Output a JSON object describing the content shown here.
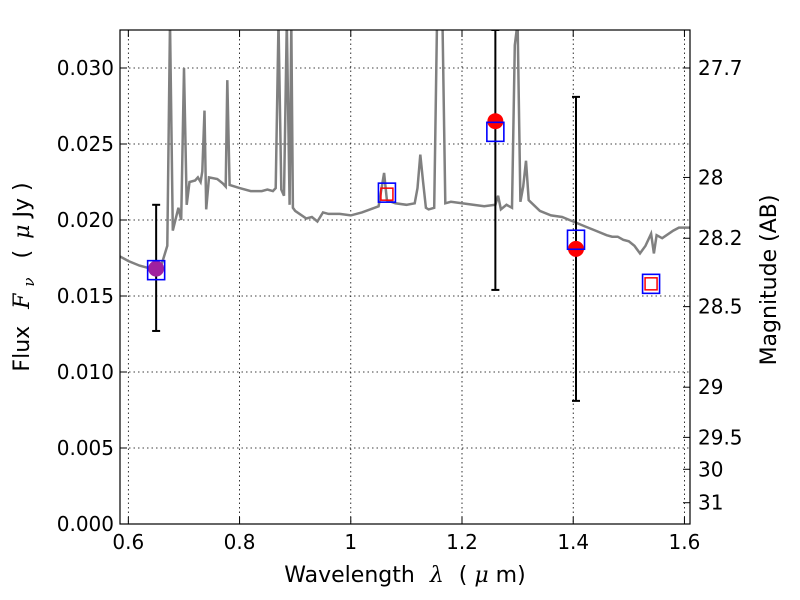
{
  "chart_data": {
    "type": "scatter",
    "xlabel_text": "Wavelength",
    "xlabel_symbol": "λ",
    "xlabel_unit_open": "(",
    "xlabel_unit_mu": "μ",
    "xlabel_unit_rest": "m)",
    "ylabel_text": "Flux",
    "ylabel_symbol": "F",
    "ylabel_sub": "ν",
    "ylabel_unit_open": "(",
    "ylabel_unit_mu": "μ",
    "ylabel_unit_rest": "Jy )",
    "y2label": "Magnitude (AB)",
    "xlim": [
      0.585,
      1.61
    ],
    "ylim": [
      0.0,
      0.0325
    ],
    "grid": true,
    "x_ticks": [
      0.6,
      0.8,
      1.0,
      1.2,
      1.4,
      1.6
    ],
    "x_tick_labels": [
      "0.6",
      "0.8",
      "1",
      "1.2",
      "1.4",
      "1.6"
    ],
    "y_ticks": [
      0.0,
      0.005,
      0.01,
      0.015,
      0.02,
      0.025,
      0.03
    ],
    "y_tick_labels": [
      "0.000",
      "0.005",
      "0.010",
      "0.015",
      "0.020",
      "0.025",
      "0.030"
    ],
    "y2_ticks": [
      {
        "label": "27.7",
        "flux": 0.03
      },
      {
        "label": "28",
        "flux": 0.0228
      },
      {
        "label": "28.2",
        "flux": 0.0188
      },
      {
        "label": "28.5",
        "flux": 0.0143
      },
      {
        "label": "29",
        "flux": 0.009
      },
      {
        "label": "29.5",
        "flux": 0.0057
      },
      {
        "label": "30",
        "flux": 0.0036
      },
      {
        "label": "31",
        "flux": 0.0014
      }
    ],
    "series": [
      {
        "kind": "template-spectrum",
        "color": "#808080",
        "points": [
          [
            0.585,
            0.0176
          ],
          [
            0.6,
            0.0173
          ],
          [
            0.62,
            0.017
          ],
          [
            0.64,
            0.0168
          ],
          [
            0.66,
            0.0171
          ],
          [
            0.67,
            0.0183
          ],
          [
            0.675,
            0.033
          ],
          [
            0.68,
            0.0193
          ],
          [
            0.69,
            0.0208
          ],
          [
            0.695,
            0.02
          ],
          [
            0.7,
            0.03
          ],
          [
            0.705,
            0.021
          ],
          [
            0.71,
            0.0225
          ],
          [
            0.72,
            0.0226
          ],
          [
            0.725,
            0.0228
          ],
          [
            0.73,
            0.0225
          ],
          [
            0.733,
            0.0232
          ],
          [
            0.737,
            0.0272
          ],
          [
            0.74,
            0.0207
          ],
          [
            0.745,
            0.0228
          ],
          [
            0.76,
            0.0227
          ],
          [
            0.77,
            0.0224
          ],
          [
            0.775,
            0.0222
          ],
          [
            0.778,
            0.0292
          ],
          [
            0.782,
            0.0223
          ],
          [
            0.8,
            0.0221
          ],
          [
            0.82,
            0.0219
          ],
          [
            0.84,
            0.0219
          ],
          [
            0.85,
            0.022
          ],
          [
            0.86,
            0.0219
          ],
          [
            0.865,
            0.0221
          ],
          [
            0.87,
            0.033
          ],
          [
            0.875,
            0.022
          ],
          [
            0.88,
            0.0216
          ],
          [
            0.885,
            0.033
          ],
          [
            0.89,
            0.021
          ],
          [
            0.893,
            0.033
          ],
          [
            0.896,
            0.0208
          ],
          [
            0.9,
            0.0206
          ],
          [
            0.92,
            0.0201
          ],
          [
            0.93,
            0.0202
          ],
          [
            0.94,
            0.0199
          ],
          [
            0.95,
            0.0205
          ],
          [
            0.96,
            0.0204
          ],
          [
            0.98,
            0.0204
          ],
          [
            1.0,
            0.0203
          ],
          [
            1.02,
            0.0205
          ],
          [
            1.05,
            0.0209
          ],
          [
            1.06,
            0.0231
          ],
          [
            1.065,
            0.0213
          ],
          [
            1.08,
            0.0211
          ],
          [
            1.1,
            0.021
          ],
          [
            1.115,
            0.0211
          ],
          [
            1.12,
            0.0221
          ],
          [
            1.125,
            0.0243
          ],
          [
            1.13,
            0.0225
          ],
          [
            1.135,
            0.0208
          ],
          [
            1.14,
            0.0207
          ],
          [
            1.15,
            0.0208
          ],
          [
            1.155,
            0.033
          ],
          [
            1.16,
            0.033
          ],
          [
            1.165,
            0.033
          ],
          [
            1.17,
            0.0211
          ],
          [
            1.18,
            0.0212
          ],
          [
            1.2,
            0.0211
          ],
          [
            1.22,
            0.021
          ],
          [
            1.24,
            0.0209
          ],
          [
            1.26,
            0.021
          ],
          [
            1.265,
            0.0216
          ],
          [
            1.27,
            0.0207
          ],
          [
            1.28,
            0.021
          ],
          [
            1.29,
            0.0208
          ],
          [
            1.295,
            0.0315
          ],
          [
            1.3,
            0.033
          ],
          [
            1.305,
            0.0212
          ],
          [
            1.31,
            0.0222
          ],
          [
            1.315,
            0.0239
          ],
          [
            1.32,
            0.0213
          ],
          [
            1.34,
            0.0206
          ],
          [
            1.36,
            0.0203
          ],
          [
            1.38,
            0.0202
          ],
          [
            1.4,
            0.0199
          ],
          [
            1.42,
            0.0196
          ],
          [
            1.44,
            0.0193
          ],
          [
            1.46,
            0.019
          ],
          [
            1.47,
            0.0189
          ],
          [
            1.48,
            0.0189
          ],
          [
            1.49,
            0.0187
          ],
          [
            1.5,
            0.0186
          ],
          [
            1.51,
            0.0183
          ],
          [
            1.52,
            0.0178
          ],
          [
            1.53,
            0.0183
          ],
          [
            1.54,
            0.0191
          ],
          [
            1.545,
            0.0178
          ],
          [
            1.55,
            0.019
          ],
          [
            1.56,
            0.0188
          ],
          [
            1.58,
            0.0193
          ],
          [
            1.59,
            0.0195
          ],
          [
            1.61,
            0.0195
          ]
        ]
      },
      {
        "kind": "model-squares",
        "color": "#0000ff",
        "points": [
          [
            0.65,
            0.0167
          ],
          [
            1.065,
            0.0218
          ],
          [
            1.26,
            0.0258
          ],
          [
            1.405,
            0.0187
          ],
          [
            1.54,
            0.0158
          ]
        ]
      },
      {
        "kind": "observed-points",
        "color": "#ff0000",
        "points": [
          {
            "x": 0.65,
            "y": 0.0168,
            "lo": 0.0127,
            "hi": 0.021,
            "marker": "circle",
            "fill": "#a020a0"
          },
          {
            "x": 1.065,
            "y": 0.0217,
            "marker": "square-hollow"
          },
          {
            "x": 1.26,
            "y": 0.0265,
            "lo": 0.0154,
            "hi": 0.0325,
            "marker": "circle",
            "fill": "#ff0000"
          },
          {
            "x": 1.405,
            "y": 0.0181,
            "lo": 0.0081,
            "hi": 0.0281,
            "marker": "circle",
            "fill": "#ff0000"
          },
          {
            "x": 1.54,
            "y": 0.0158,
            "marker": "square-hollow"
          }
        ]
      }
    ]
  }
}
